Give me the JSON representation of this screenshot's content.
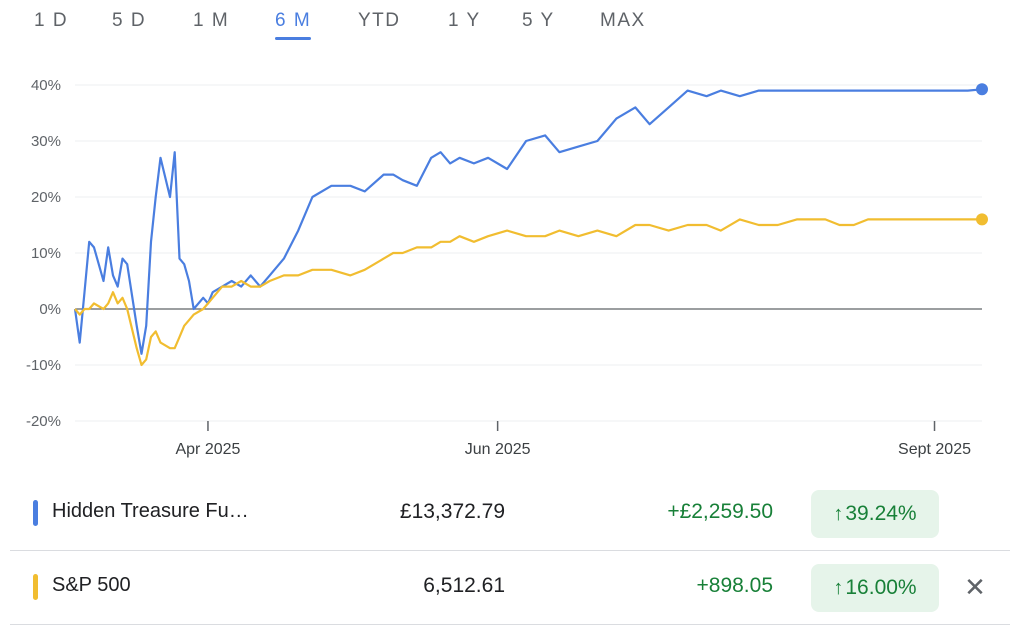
{
  "tabs": [
    {
      "label": "1 D",
      "active": false
    },
    {
      "label": "5 D",
      "active": false
    },
    {
      "label": "1 M",
      "active": false
    },
    {
      "label": "6 M",
      "active": true
    },
    {
      "label": "YTD",
      "active": false
    },
    {
      "label": "1 Y",
      "active": false
    },
    {
      "label": "5 Y",
      "active": false
    },
    {
      "label": "MAX",
      "active": false
    }
  ],
  "chart_data": {
    "type": "line",
    "y_ticks": [
      "40%",
      "30%",
      "20%",
      "10%",
      "0%",
      "-10%",
      "-20%"
    ],
    "ylim": [
      -20,
      40
    ],
    "x_ticks": [
      "Apr 2025",
      "Jun 2025",
      "Sept 2025"
    ],
    "series": [
      {
        "name": "Hidden Treasure Fu…",
        "color": "#4a7ee0",
        "x": [
          "2025-03-04",
          "2025-03-05",
          "2025-03-06",
          "2025-03-07",
          "2025-03-08",
          "2025-03-10",
          "2025-03-11",
          "2025-03-12",
          "2025-03-13",
          "2025-03-14",
          "2025-03-15",
          "2025-03-17",
          "2025-03-18",
          "2025-03-19",
          "2025-03-20",
          "2025-03-21",
          "2025-03-22",
          "2025-03-24",
          "2025-03-25",
          "2025-03-26",
          "2025-03-27",
          "2025-03-28",
          "2025-03-29",
          "2025-03-31",
          "2025-04-01",
          "2025-04-02",
          "2025-04-04",
          "2025-04-06",
          "2025-04-08",
          "2025-04-10",
          "2025-04-12",
          "2025-04-14",
          "2025-04-17",
          "2025-04-20",
          "2025-04-23",
          "2025-04-27",
          "2025-05-01",
          "2025-05-04",
          "2025-05-08",
          "2025-05-10",
          "2025-05-12",
          "2025-05-15",
          "2025-05-18",
          "2025-05-20",
          "2025-05-22",
          "2025-05-24",
          "2025-05-27",
          "2025-05-30",
          "2025-06-03",
          "2025-06-07",
          "2025-06-11",
          "2025-06-14",
          "2025-06-18",
          "2025-06-22",
          "2025-06-26",
          "2025-06-30",
          "2025-07-03",
          "2025-07-07",
          "2025-07-11",
          "2025-07-15",
          "2025-07-18",
          "2025-07-22",
          "2025-07-26",
          "2025-07-30",
          "2025-08-03",
          "2025-08-06",
          "2025-08-09",
          "2025-08-12",
          "2025-08-15",
          "2025-08-18",
          "2025-08-21",
          "2025-08-24",
          "2025-08-27",
          "2025-08-30",
          "2025-09-02",
          "2025-09-05",
          "2025-09-08",
          "2025-09-11"
        ],
        "y": [
          0,
          -6,
          3,
          12,
          11,
          5,
          11,
          6,
          4,
          9,
          8,
          -3,
          -8,
          -3,
          12,
          20,
          27,
          20,
          28,
          9,
          8,
          5,
          0,
          2,
          1,
          3,
          4,
          5,
          4,
          6,
          4,
          6,
          9,
          14,
          20,
          22,
          22,
          21,
          24,
          24,
          23,
          22,
          27,
          28,
          26,
          27,
          26,
          27,
          25,
          30,
          31,
          28,
          29,
          30,
          34,
          36,
          33,
          36,
          39,
          38,
          39,
          38,
          39,
          39,
          39,
          39,
          39,
          39,
          39,
          39,
          39,
          39,
          39,
          39,
          39,
          39,
          39,
          39.24
        ]
      },
      {
        "name": "S&P 500",
        "color": "#f1bd30",
        "x": [
          "2025-03-04",
          "2025-03-05",
          "2025-03-06",
          "2025-03-07",
          "2025-03-08",
          "2025-03-10",
          "2025-03-11",
          "2025-03-12",
          "2025-03-13",
          "2025-03-14",
          "2025-03-15",
          "2025-03-17",
          "2025-03-18",
          "2025-03-19",
          "2025-03-20",
          "2025-03-21",
          "2025-03-22",
          "2025-03-24",
          "2025-03-25",
          "2025-03-26",
          "2025-03-27",
          "2025-03-28",
          "2025-03-29",
          "2025-03-31",
          "2025-04-01",
          "2025-04-02",
          "2025-04-04",
          "2025-04-06",
          "2025-04-08",
          "2025-04-10",
          "2025-04-12",
          "2025-04-14",
          "2025-04-17",
          "2025-04-20",
          "2025-04-23",
          "2025-04-27",
          "2025-05-01",
          "2025-05-04",
          "2025-05-08",
          "2025-05-10",
          "2025-05-12",
          "2025-05-15",
          "2025-05-18",
          "2025-05-20",
          "2025-05-22",
          "2025-05-24",
          "2025-05-27",
          "2025-05-30",
          "2025-06-03",
          "2025-06-07",
          "2025-06-11",
          "2025-06-14",
          "2025-06-18",
          "2025-06-22",
          "2025-06-26",
          "2025-06-30",
          "2025-07-03",
          "2025-07-07",
          "2025-07-11",
          "2025-07-15",
          "2025-07-18",
          "2025-07-22",
          "2025-07-26",
          "2025-07-30",
          "2025-08-03",
          "2025-08-06",
          "2025-08-09",
          "2025-08-12",
          "2025-08-15",
          "2025-08-18",
          "2025-08-21",
          "2025-08-24",
          "2025-08-27",
          "2025-08-30",
          "2025-09-02",
          "2025-09-05",
          "2025-09-08",
          "2025-09-11"
        ],
        "y": [
          0,
          -1,
          0,
          0,
          1,
          0,
          1,
          3,
          1,
          2,
          0,
          -7,
          -10,
          -9,
          -5,
          -4,
          -6,
          -7,
          -7,
          -5,
          -3,
          -2,
          -1,
          0,
          1,
          2,
          4,
          4,
          5,
          4,
          4,
          5,
          6,
          6,
          7,
          7,
          6,
          7,
          9,
          10,
          10,
          11,
          11,
          12,
          12,
          13,
          12,
          13,
          14,
          13,
          13,
          14,
          13,
          14,
          13,
          15,
          15,
          14,
          15,
          15,
          14,
          16,
          15,
          15,
          16,
          16,
          16,
          15,
          15,
          16,
          16,
          16,
          16,
          16,
          16,
          16,
          16,
          16
        ]
      }
    ]
  },
  "rows": [
    {
      "name": "Hidden Treasure Fu…",
      "price": "£13,372.79",
      "change": "+£2,259.50",
      "pct": "39.24%",
      "color": "#4a7ee0"
    },
    {
      "name": "S&P 500",
      "price": "6,512.61",
      "change": "+898.05",
      "pct": "16.00%",
      "color": "#f1bd30"
    }
  ]
}
